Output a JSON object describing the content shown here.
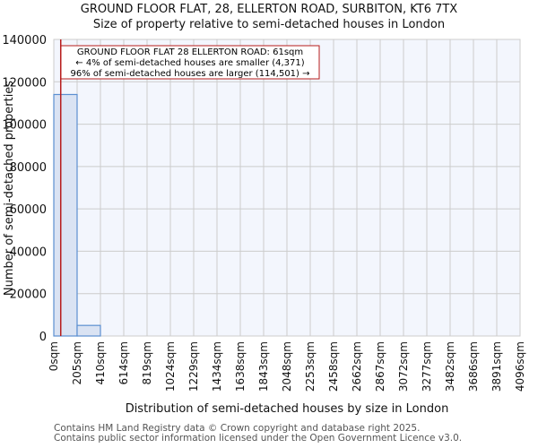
{
  "header": {
    "title": "GROUND FLOOR FLAT, 28, ELLERTON ROAD, SURBITON, KT6 7TX",
    "subtitle": "Size of property relative to semi-detached houses in London"
  },
  "annotation": {
    "line1": "GROUND FLOOR FLAT 28 ELLERTON ROAD: 61sqm",
    "line2": "← 4% of semi-detached houses are smaller (4,371)",
    "line3": "96% of semi-detached houses are larger (114,501) →",
    "marker_value_sqm": 61
  },
  "footer": {
    "line1": "Contains HM Land Registry data © Crown copyright and database right 2025.",
    "line2": "Contains public sector information licensed under the Open Government Licence v3.0."
  },
  "colors": {
    "bar_fill": "#dae3f3",
    "bar_edge": "#5b8fd0",
    "plot_bg": "#f3f6fd",
    "grid": "#cccccc",
    "marker": "#b71c1c"
  },
  "chart_data": {
    "type": "bar",
    "title": "GROUND FLOOR FLAT, 28, ELLERTON ROAD, SURBITON, KT6 7TX",
    "subtitle": "Size of property relative to semi-detached houses in London",
    "xlabel": "Distribution of semi-detached houses by size in London",
    "ylabel": "Number of semi-detached properties",
    "categories": [
      "0sqm",
      "205sqm",
      "410sqm",
      "614sqm",
      "819sqm",
      "1024sqm",
      "1229sqm",
      "1434sqm",
      "1638sqm",
      "1843sqm",
      "2048sqm",
      "2253sqm",
      "2458sqm",
      "2662sqm",
      "2867sqm",
      "3072sqm",
      "3277sqm",
      "3482sqm",
      "3686sqm",
      "3891sqm",
      "4096sqm"
    ],
    "bins": [
      {
        "from": "0sqm",
        "to": "205sqm",
        "value": 114000
      },
      {
        "from": "205sqm",
        "to": "410sqm",
        "value": 5000
      },
      {
        "from": "410sqm",
        "to": "614sqm",
        "value": 0
      },
      {
        "from": "614sqm",
        "to": "819sqm",
        "value": 0
      },
      {
        "from": "819sqm",
        "to": "1024sqm",
        "value": 0
      },
      {
        "from": "1024sqm",
        "to": "1229sqm",
        "value": 0
      },
      {
        "from": "1229sqm",
        "to": "1434sqm",
        "value": 0
      },
      {
        "from": "1434sqm",
        "to": "1638sqm",
        "value": 0
      },
      {
        "from": "1638sqm",
        "to": "1843sqm",
        "value": 0
      },
      {
        "from": "1843sqm",
        "to": "2048sqm",
        "value": 0
      },
      {
        "from": "2048sqm",
        "to": "2253sqm",
        "value": 0
      },
      {
        "from": "2253sqm",
        "to": "2458sqm",
        "value": 0
      },
      {
        "from": "2458sqm",
        "to": "2662sqm",
        "value": 0
      },
      {
        "from": "2662sqm",
        "to": "2867sqm",
        "value": 0
      },
      {
        "from": "2867sqm",
        "to": "3072sqm",
        "value": 0
      },
      {
        "from": "3072sqm",
        "to": "3277sqm",
        "value": 0
      },
      {
        "from": "3277sqm",
        "to": "3482sqm",
        "value": 0
      },
      {
        "from": "3482sqm",
        "to": "3686sqm",
        "value": 0
      },
      {
        "from": "3686sqm",
        "to": "3891sqm",
        "value": 0
      },
      {
        "from": "3891sqm",
        "to": "4096sqm",
        "value": 0
      }
    ],
    "values": [
      114000,
      5000,
      0,
      0,
      0,
      0,
      0,
      0,
      0,
      0,
      0,
      0,
      0,
      0,
      0,
      0,
      0,
      0,
      0,
      0
    ],
    "yticks": [
      0,
      20000,
      40000,
      60000,
      80000,
      100000,
      120000,
      140000
    ],
    "ylim": [
      0,
      140000
    ],
    "grid": true,
    "marker_line": {
      "x_sqm": 61,
      "label": "GROUND FLOOR FLAT 28 ELLERTON ROAD: 61sqm"
    },
    "annotations": [
      "GROUND FLOOR FLAT 28 ELLERTON ROAD: 61sqm",
      "← 4% of semi-detached houses are smaller (4,371)",
      "96% of semi-detached houses are larger (114,501) →"
    ]
  }
}
